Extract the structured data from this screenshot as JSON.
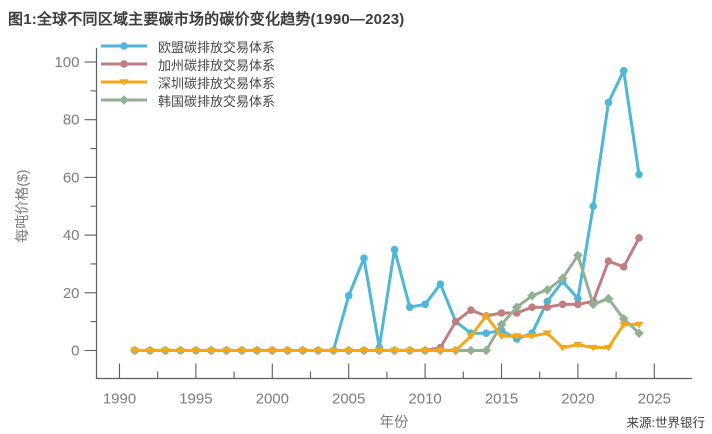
{
  "chart_data": {
    "type": "line",
    "title": "图1:全球不同区域主要碳市场的碳价变化趋势(1990—2023)",
    "xlabel": "年份",
    "ylabel": "每吨价格($)",
    "source": "来源:世界银行",
    "legend_position": "upper-left-inside",
    "grid": false,
    "xlim": [
      1988.5,
      2027.5
    ],
    "ylim": [
      -10,
      105
    ],
    "xticks": [
      1990,
      1995,
      2000,
      2005,
      2010,
      2015,
      2020,
      2025
    ],
    "xticks_minor": [
      1992.5,
      1997.5,
      2002.5,
      2007.5,
      2012.5,
      2017.5,
      2022.5,
      2027.5
    ],
    "yticks": [
      0,
      20,
      40,
      60,
      80,
      100
    ],
    "yticks_minor": [
      10,
      30,
      50,
      70,
      90
    ],
    "x": [
      1991,
      1992,
      1993,
      1994,
      1995,
      1996,
      1997,
      1998,
      1999,
      2000,
      2001,
      2002,
      2003,
      2004,
      2005,
      2006,
      2007,
      2008,
      2009,
      2010,
      2011,
      2012,
      2013,
      2014,
      2015,
      2016,
      2017,
      2018,
      2019,
      2020,
      2021,
      2022,
      2023,
      2024
    ],
    "series": [
      {
        "name": "欧盟碳排放交易体系",
        "color": "#4db6d9",
        "marker": "circle",
        "values": [
          0,
          0,
          0,
          0,
          0,
          0,
          0,
          0,
          0,
          0,
          0,
          0,
          0,
          0,
          19,
          32,
          1,
          35,
          15,
          16,
          23,
          10,
          6,
          6,
          7,
          4,
          6,
          17,
          24,
          18,
          50,
          86,
          97,
          61
        ]
      },
      {
        "name": "加州碳排放交易体系",
        "color": "#c07e80",
        "marker": "circle",
        "values": [
          0,
          0,
          0,
          0,
          0,
          0,
          0,
          0,
          0,
          0,
          0,
          0,
          0,
          0,
          0,
          0,
          0,
          0,
          0,
          0,
          1,
          10,
          14,
          12,
          13,
          13,
          15,
          15,
          16,
          16,
          17,
          31,
          29,
          39
        ]
      },
      {
        "name": "深圳碳排放交易体系",
        "color": "#f5a71c",
        "marker": "triangle-down",
        "values": [
          0,
          0,
          0,
          0,
          0,
          0,
          0,
          0,
          0,
          0,
          0,
          0,
          0,
          0,
          0,
          0,
          0,
          0,
          0,
          0,
          0,
          0,
          5,
          12,
          5,
          5,
          5,
          6,
          1,
          2,
          1,
          1,
          9,
          9
        ]
      },
      {
        "name": "韩国碳排放交易体系",
        "color": "#94b094",
        "marker": "diamond",
        "values": [
          0,
          0,
          0,
          0,
          0,
          0,
          0,
          0,
          0,
          0,
          0,
          0,
          0,
          0,
          0,
          0,
          0,
          0,
          0,
          0,
          0,
          0,
          0,
          0,
          9,
          15,
          19,
          21,
          25,
          33,
          16,
          18,
          11,
          6
        ]
      }
    ]
  }
}
